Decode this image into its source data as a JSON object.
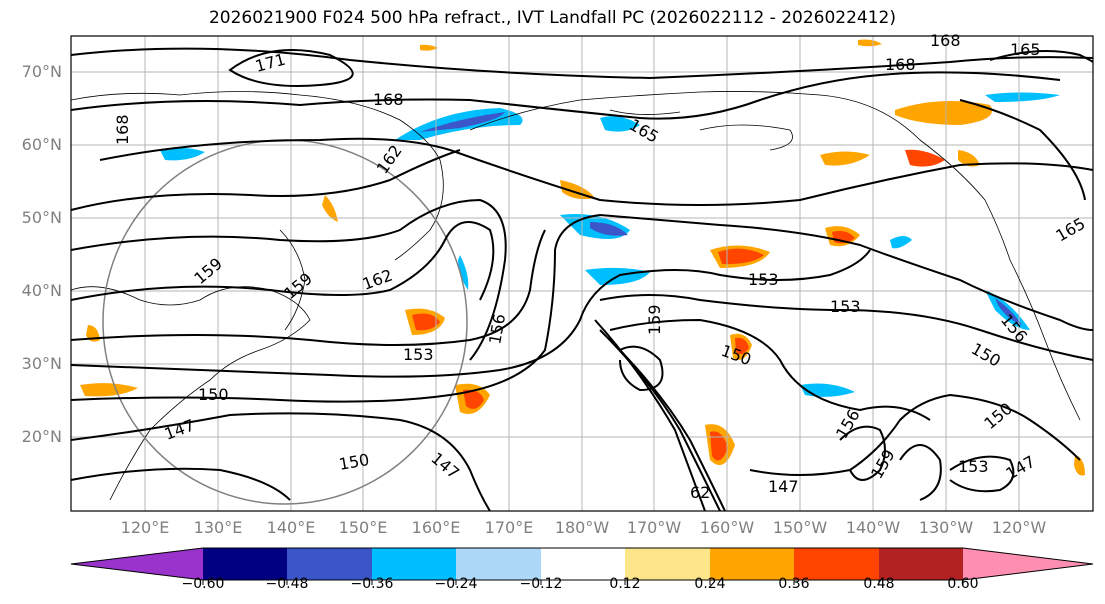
{
  "title": "2026021900 F024 500 hPa refract., IVT Landfall PC (2026022112 - 2026022412)",
  "lat_labels": [
    "70°N",
    "60°N",
    "50°N",
    "40°N",
    "30°N",
    "20°N"
  ],
  "lon_labels": [
    "120°E",
    "130°E",
    "140°E",
    "150°E",
    "160°E",
    "170°E",
    "180°W",
    "170°W",
    "160°W",
    "150°W",
    "140°W",
    "130°W",
    "120°W"
  ],
  "contour_labels": [
    "171",
    "168",
    "168",
    "168",
    "168",
    "165",
    "165",
    "165",
    "162",
    "162",
    "162",
    "159",
    "159",
    "159",
    "159",
    "156",
    "156",
    "156",
    "153",
    "153",
    "153",
    "153",
    "150",
    "150",
    "150",
    "150",
    "150",
    "147",
    "147",
    "147",
    "147",
    "62"
  ],
  "colorbar": {
    "ticks": [
      "−0.60",
      "−0.48",
      "−0.36",
      "−0.24",
      "−0.12",
      "0.12",
      "0.24",
      "0.36",
      "0.48",
      "0.60"
    ],
    "colors": [
      "#9933cc",
      "#000080",
      "#3a56c8",
      "#00bfff",
      "#add8f7",
      "#ffffff",
      "#fde68a",
      "#ffa500",
      "#ff4500",
      "#b22222",
      "#ff8fb0"
    ]
  }
}
